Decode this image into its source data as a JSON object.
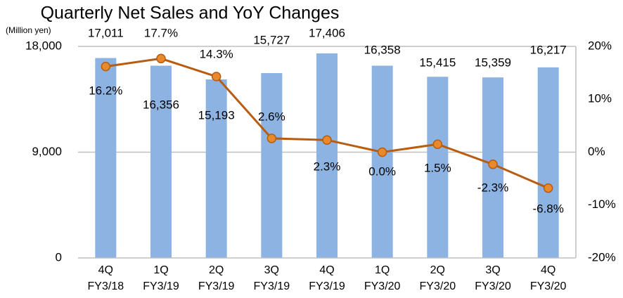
{
  "chart_data": {
    "type": "bar-line",
    "title": "Quarterly Net Sales and YoY Changes",
    "y_label": "(Million yen)",
    "categories": [
      [
        "4Q",
        "FY3/18"
      ],
      [
        "1Q",
        "FY3/19"
      ],
      [
        "2Q",
        "FY3/19"
      ],
      [
        "3Q",
        "FY3/19"
      ],
      [
        "4Q",
        "FY3/19"
      ],
      [
        "1Q",
        "FY3/20"
      ],
      [
        "2Q",
        "FY3/20"
      ],
      [
        "3Q",
        "FY3/20"
      ],
      [
        "4Q",
        "FY3/20"
      ]
    ],
    "series": [
      {
        "type": "bar",
        "color": "#8db3e2",
        "values": [
          17011,
          16356,
          15193,
          15727,
          17406,
          16358,
          15415,
          15359,
          16217
        ],
        "value_labels": [
          "17,011",
          "16,356",
          "15,193",
          "15,727",
          "17,406",
          "16,358",
          "15,415",
          "15,359",
          "16,217"
        ]
      },
      {
        "type": "line",
        "axis": "y2",
        "color": "#b85c12",
        "marker_color": "#e8892b",
        "values": [
          16.2,
          17.7,
          14.3,
          2.6,
          2.3,
          0.0,
          1.5,
          -2.3,
          -6.8
        ],
        "value_labels": [
          "16.2%",
          "17.7%",
          "14.3%",
          "2.6%",
          "2.3%",
          "0.0%",
          "1.5%",
          "-2.3%",
          "-6.8%"
        ]
      }
    ],
    "ylim": [
      0,
      18000
    ],
    "yticks": [
      0,
      {
        "value": 9000,
        "label": "9,000"
      },
      {
        "value": 18000,
        "label": "18,000"
      }
    ],
    "y2lim": [
      -20,
      20
    ],
    "y2ticks": [
      {
        "value": -20,
        "label": "-20%"
      },
      {
        "value": -10,
        "label": "-10%"
      },
      {
        "value": 0,
        "label": "0%"
      },
      {
        "value": 10,
        "label": "10%"
      },
      {
        "value": 20,
        "label": "20%"
      }
    ],
    "grid": true
  }
}
